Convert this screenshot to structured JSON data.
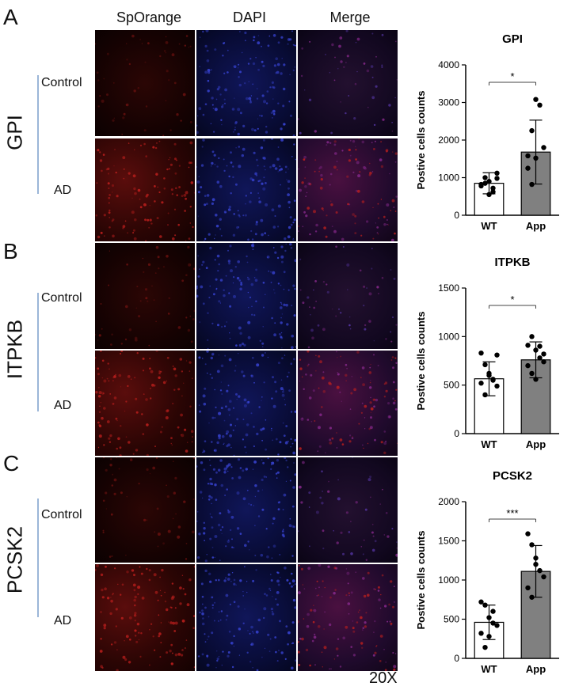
{
  "column_headers": [
    "SpOrange",
    "DAPI",
    "Merge"
  ],
  "magnification": "20X",
  "panels": [
    {
      "letter": "A",
      "gene": "GPI",
      "rows": [
        "Control",
        "AD"
      ]
    },
    {
      "letter": "B",
      "gene": "ITPKB",
      "rows": [
        "Control",
        "AD"
      ]
    },
    {
      "letter": "C",
      "gene": "PCSK2",
      "rows": [
        "Control",
        "AD"
      ]
    }
  ],
  "colors": {
    "wt_fill": "#ffffff",
    "app_fill": "#808080",
    "stroke": "#000000",
    "sporange": "#c2201e",
    "dapi": "#2a2fbf"
  },
  "chart_data": [
    {
      "type": "bar",
      "title": "GPI",
      "ylabel": "Postive cells counts",
      "categories": [
        "WT",
        "App"
      ],
      "values": [
        850,
        1680
      ],
      "errors": [
        280,
        850
      ],
      "ylim": [
        0,
        4000
      ],
      "yticks": [
        0,
        1000,
        2000,
        3000,
        4000
      ],
      "points": [
        [
          780,
          1000,
          900,
          620,
          1120,
          820,
          850,
          550,
          720,
          980
        ],
        [
          1580,
          2250,
          3080,
          2930,
          1800,
          1250,
          820,
          1520
        ]
      ],
      "significance": "*"
    },
    {
      "type": "bar",
      "title": "ITPKB",
      "ylabel": "Postive cells counts",
      "categories": [
        "WT",
        "App"
      ],
      "values": [
        565,
        760
      ],
      "errors": [
        175,
        185
      ],
      "ylim": [
        0,
        1500
      ],
      "yticks": [
        0,
        500,
        1000,
        1500
      ],
      "points": [
        [
          830,
          710,
          600,
          560,
          490,
          520,
          400,
          620,
          550,
          810
        ],
        [
          910,
          1000,
          860,
          780,
          740,
          700,
          620,
          560,
          900,
          820
        ]
      ],
      "significance": "*"
    },
    {
      "type": "bar",
      "title": "PCSK2",
      "ylabel": "Postive cells counts",
      "categories": [
        "WT",
        "App"
      ],
      "values": [
        460,
        1110
      ],
      "errors": [
        220,
        330
      ],
      "ylim": [
        0,
        2000
      ],
      "yticks": [
        0,
        500,
        1000,
        1500,
        2000
      ],
      "points": [
        [
          720,
          680,
          520,
          450,
          420,
          320,
          140,
          280,
          600
        ],
        [
          1590,
          1450,
          1280,
          1120,
          1040,
          900,
          780,
          1200
        ]
      ],
      "significance": "***"
    }
  ]
}
